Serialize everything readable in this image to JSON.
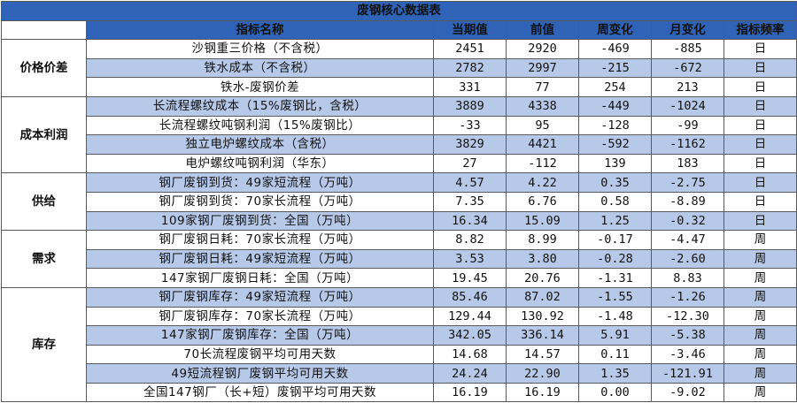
{
  "title": "废钢核心数据表",
  "headers": [
    "指标名称",
    "当期值",
    "前值",
    "周变化",
    "月变化",
    "指标频率"
  ],
  "groups": [
    {
      "category": "价格价差",
      "rows": [
        {
          "name": "沙钢重三价格（不含税）",
          "current": "2451",
          "previous": "2920",
          "wow": "-469",
          "mom": "-885",
          "freq": "日"
        },
        {
          "name": "铁水成本（不含税）",
          "current": "2782",
          "previous": "2997",
          "wow": "-215",
          "mom": "-672",
          "freq": "日"
        },
        {
          "name": "铁水-废钢价差",
          "current": "331",
          "previous": "77",
          "wow": "254",
          "mom": "213",
          "freq": "日"
        }
      ]
    },
    {
      "category": "成本利润",
      "rows": [
        {
          "name": "长流程螺纹成本（15%废钢比，含税）",
          "current": "3889",
          "previous": "4338",
          "wow": "-449",
          "mom": "-1024",
          "freq": "日"
        },
        {
          "name": "长流程螺纹吨钢利润（15%废钢比）",
          "current": "-33",
          "previous": "95",
          "wow": "-128",
          "mom": "-99",
          "freq": "日"
        },
        {
          "name": "独立电炉螺纹成本（含税）",
          "current": "3829",
          "previous": "4421",
          "wow": "-592",
          "mom": "-1162",
          "freq": "日"
        },
        {
          "name": "电炉螺纹吨钢利润（华东）",
          "current": "27",
          "previous": "-112",
          "wow": "139",
          "mom": "183",
          "freq": "日"
        }
      ]
    },
    {
      "category": "供给",
      "rows": [
        {
          "name": "钢厂废钢到货：49家短流程（万吨）",
          "current": "4.57",
          "previous": "4.22",
          "wow": "0.35",
          "mom": "-2.75",
          "freq": "日"
        },
        {
          "name": "钢厂废钢到货：70家长流程（万吨）",
          "current": "7.35",
          "previous": "6.76",
          "wow": "0.58",
          "mom": "-8.89",
          "freq": "日"
        },
        {
          "name": "109家钢厂废钢到货：全国（万吨）",
          "current": "16.34",
          "previous": "15.09",
          "wow": "1.25",
          "mom": "-0.32",
          "freq": "日"
        }
      ]
    },
    {
      "category": "需求",
      "rows": [
        {
          "name": "钢厂废钢日耗：70家长流程（万吨）",
          "current": "8.82",
          "previous": "8.99",
          "wow": "-0.17",
          "mom": "-4.47",
          "freq": "周"
        },
        {
          "name": "钢厂废钢日耗：49家短流程（万吨）",
          "current": "3.53",
          "previous": "3.80",
          "wow": "-0.28",
          "mom": "-2.60",
          "freq": "周"
        },
        {
          "name": "147家钢厂废钢日耗：全国（万吨）",
          "current": "19.45",
          "previous": "20.76",
          "wow": "-1.31",
          "mom": "8.83",
          "freq": "周"
        }
      ]
    },
    {
      "category": "库存",
      "rows": [
        {
          "name": "钢厂废钢库存：49家短流程（万吨）",
          "current": "85.46",
          "previous": "87.02",
          "wow": "-1.55",
          "mom": "-1.26",
          "freq": "周"
        },
        {
          "name": "钢厂废钢库存：70家长流程（万吨）",
          "current": "129.44",
          "previous": "130.92",
          "wow": "-1.48",
          "mom": "-12.30",
          "freq": "周"
        },
        {
          "name": "147家钢厂废钢库存：全国（万吨）",
          "current": "342.05",
          "previous": "336.14",
          "wow": "5.91",
          "mom": "-5.38",
          "freq": "周"
        },
        {
          "name": "70长流程废钢平均可用天数",
          "current": "14.68",
          "previous": "14.57",
          "wow": "0.11",
          "mom": "-3.46",
          "freq": "周"
        },
        {
          "name": "49短流程钢厂废钢平均可用天数",
          "current": "24.24",
          "previous": "22.90",
          "wow": "1.35",
          "mom": "-121.91",
          "freq": "周"
        },
        {
          "name": "全国147钢厂（长+短）废钢平均可用天数",
          "current": "16.19",
          "previous": "16.19",
          "wow": "0.00",
          "mom": "-9.02",
          "freq": "周"
        }
      ]
    }
  ]
}
